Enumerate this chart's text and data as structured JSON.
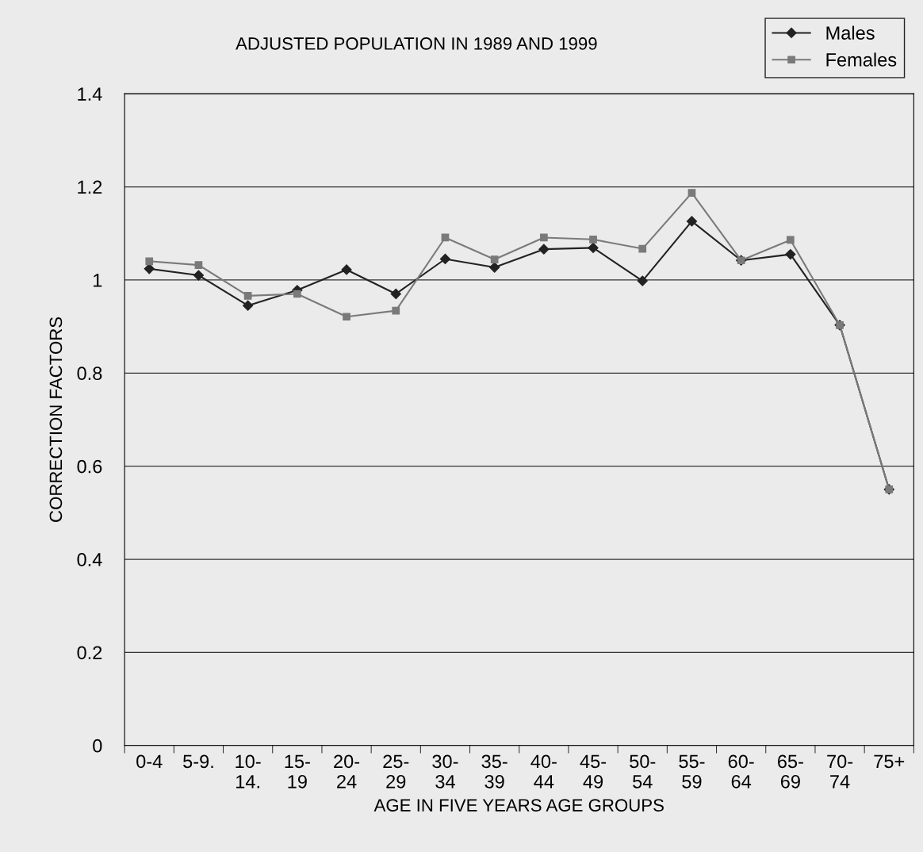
{
  "chart_data": {
    "type": "line",
    "title": "ADJUSTED POPULATION IN 1989 AND 1999",
    "xlabel": "AGE IN FIVE YEARS AGE GROUPS",
    "ylabel": "CORRECTION FACTORS",
    "categories": [
      "0-4",
      "5-9.",
      "10-\n14.",
      "15-\n19",
      "20-\n24",
      "25-\n29",
      "30-\n34",
      "35-\n39",
      "40-\n44",
      "45-\n49",
      "50-\n54",
      "55-\n59",
      "60-\n64",
      "65-\n69",
      "70-\n74",
      "75+"
    ],
    "series": [
      {
        "name": "Males",
        "color": "#222222",
        "marker": "diamond",
        "values": [
          1.024,
          1.01,
          0.945,
          0.978,
          1.022,
          0.97,
          1.045,
          1.027,
          1.066,
          1.069,
          0.998,
          1.126,
          1.042,
          1.055,
          0.903,
          0.55
        ]
      },
      {
        "name": "Females",
        "color": "#7a7a7a",
        "marker": "square",
        "values": [
          1.04,
          1.032,
          0.966,
          0.97,
          0.921,
          0.934,
          1.091,
          1.044,
          1.091,
          1.087,
          1.067,
          1.187,
          1.042,
          1.086,
          0.903,
          0.55
        ]
      }
    ],
    "ylim": [
      0,
      1.4
    ],
    "yticks": [
      0,
      0.2,
      0.4,
      0.6,
      0.8,
      1,
      1.2,
      1.4
    ],
    "grid": "y",
    "legend": "top right",
    "line_style": "solid"
  }
}
